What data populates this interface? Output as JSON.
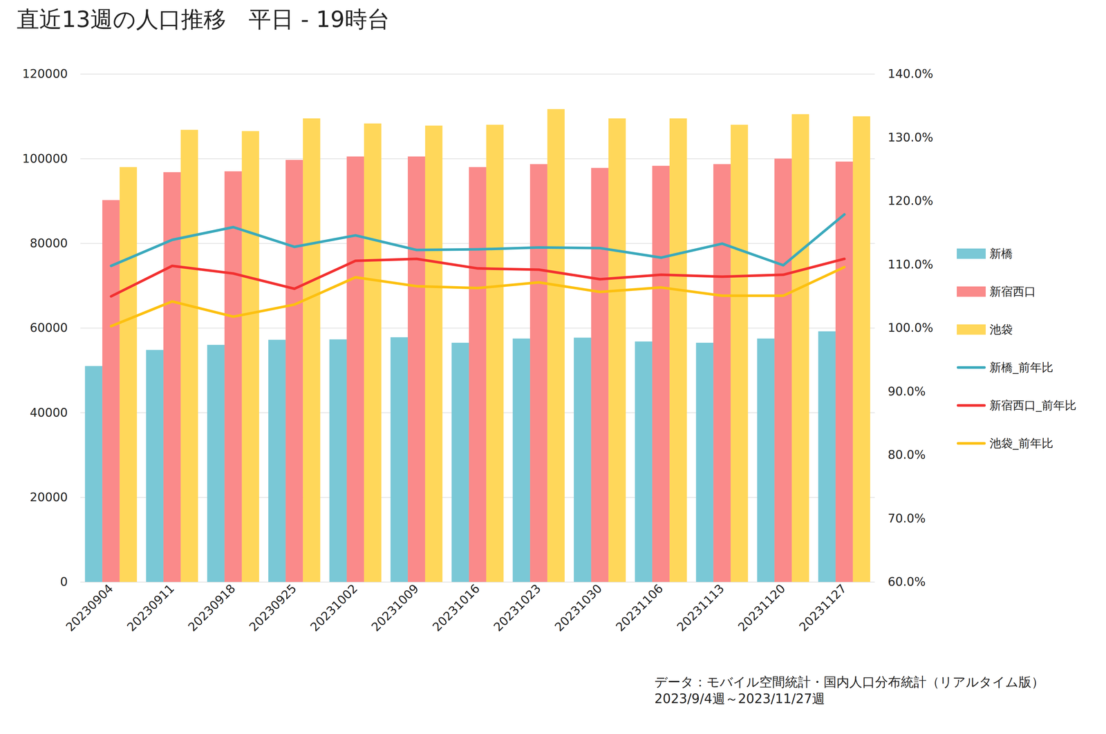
{
  "chart_data": {
    "type": "bar",
    "title": "直近13週の人口推移　平日 - 19時台",
    "caption": [
      "データ：モバイル空間統計・国内人口分布統計（リアルタイム版）",
      "2023/9/4週～2023/11/27週"
    ],
    "categories": [
      "20230904",
      "20230911",
      "20230918",
      "20230925",
      "20231002",
      "20231009",
      "20231016",
      "20231023",
      "20231030",
      "20231106",
      "20231113",
      "20231120",
      "20231127"
    ],
    "series": [
      {
        "name": "新橋",
        "type": "bar",
        "color": "#7ac8d6",
        "values": [
          51000,
          54800,
          56000,
          57200,
          57300,
          57800,
          56500,
          57500,
          57700,
          56800,
          56500,
          57500,
          59200
        ]
      },
      {
        "name": "新宿西口",
        "type": "bar",
        "color": "#fa8a8a",
        "values": [
          90200,
          96800,
          97000,
          99700,
          100500,
          100500,
          98000,
          98700,
          97800,
          98300,
          98700,
          100000,
          99300
        ]
      },
      {
        "name": "池袋",
        "type": "bar",
        "color": "#ffd75a",
        "values": [
          98000,
          106800,
          106500,
          109500,
          108300,
          107800,
          108000,
          111700,
          109500,
          109500,
          108000,
          110500,
          110000
        ]
      },
      {
        "name": "新橋_前年比",
        "type": "line",
        "axis": "y2",
        "color": "#3aa9bc",
        "values": [
          109.8,
          113.9,
          115.9,
          112.8,
          114.6,
          112.3,
          112.4,
          112.7,
          112.6,
          111.1,
          113.3,
          109.9,
          117.9
        ]
      },
      {
        "name": "新宿西口_前年比",
        "type": "line",
        "axis": "y2",
        "color": "#f23030",
        "values": [
          105.0,
          109.8,
          108.6,
          106.2,
          110.6,
          110.9,
          109.4,
          109.2,
          107.7,
          108.4,
          108.1,
          108.4,
          110.9
        ]
      },
      {
        "name": "池袋_前年比",
        "type": "line",
        "axis": "y2",
        "color": "#fcc010",
        "values": [
          100.3,
          104.2,
          101.8,
          103.7,
          108.0,
          106.6,
          106.3,
          107.2,
          105.7,
          106.4,
          105.1,
          105.1,
          109.6
        ]
      }
    ],
    "ylim": [
      0,
      120000
    ],
    "yticks": [
      0,
      20000,
      40000,
      60000,
      80000,
      100000,
      120000
    ],
    "y2lim": [
      60,
      140
    ],
    "y2ticks": [
      {
        "value": 60,
        "label": "60.0%"
      },
      {
        "value": 70,
        "label": "70.0%"
      },
      {
        "value": 80,
        "label": "80.0%"
      },
      {
        "value": 90,
        "label": "90.0%"
      },
      {
        "value": 100,
        "label": "100.0%"
      },
      {
        "value": 110,
        "label": "110.0%"
      },
      {
        "value": 120,
        "label": "120.0%"
      },
      {
        "value": 130,
        "label": "130.0%"
      },
      {
        "value": 140,
        "label": "140.0%"
      }
    ],
    "grid": true,
    "legend": "right"
  }
}
